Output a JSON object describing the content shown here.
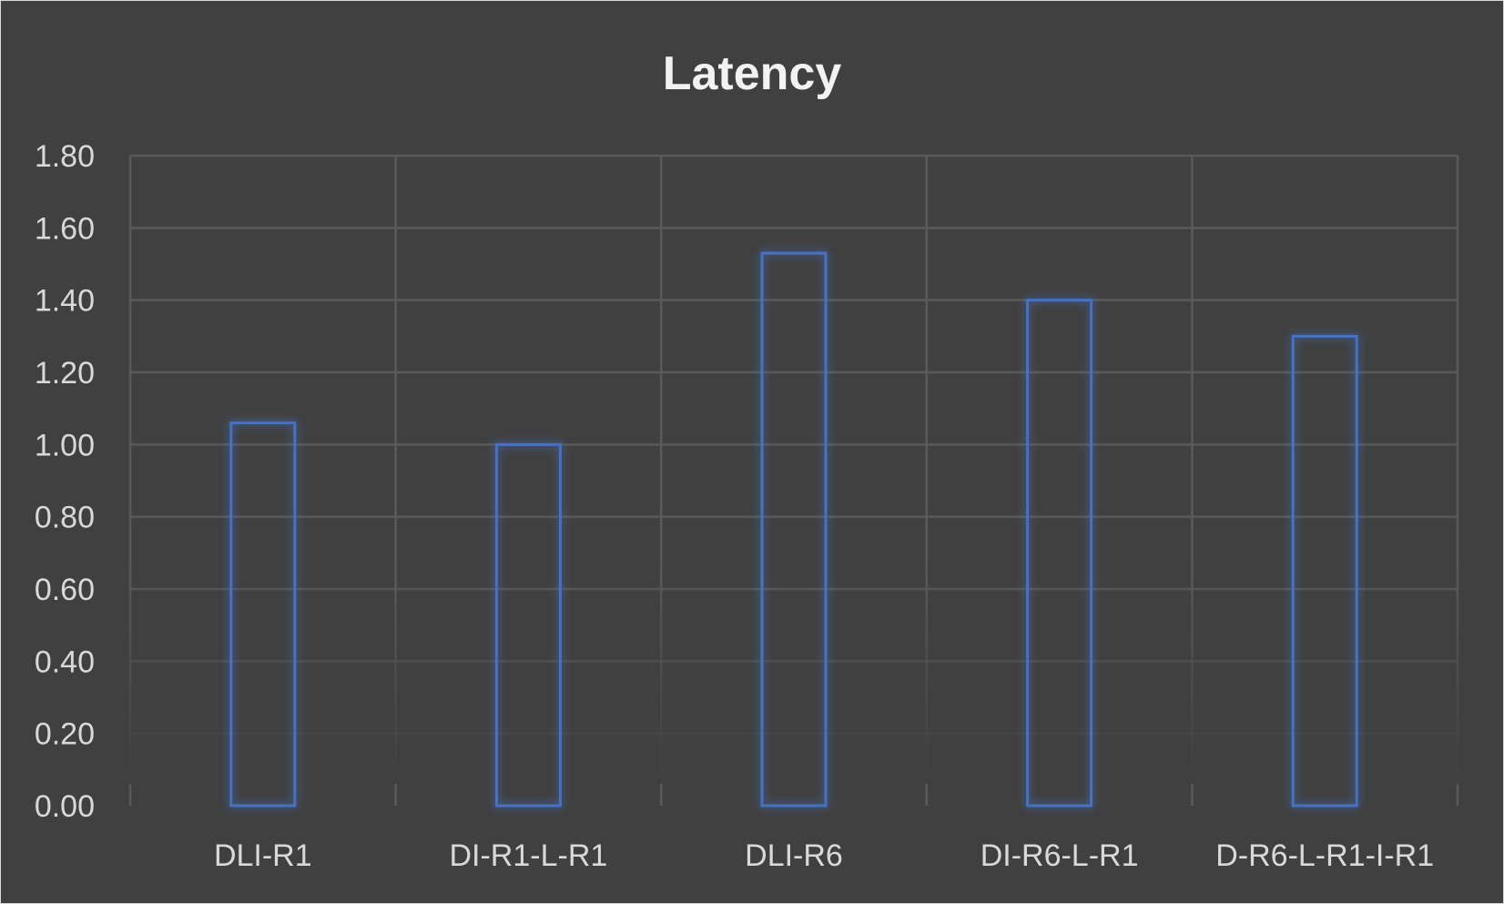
{
  "chart_data": {
    "type": "bar",
    "title": "Latency",
    "xlabel": "",
    "ylabel": "",
    "categories": [
      "DLI-R1",
      "DI-R1-L-R1",
      "DLI-R6",
      "DI-R6-L-R1",
      "D-R6-L-R1-I-R1"
    ],
    "values": [
      1.06,
      1.0,
      1.53,
      1.4,
      1.3
    ],
    "ylim": [
      0,
      1.8
    ],
    "yticks": [
      "0.00",
      "0.20",
      "0.40",
      "0.60",
      "0.80",
      "1.00",
      "1.20",
      "1.40",
      "1.60",
      "1.80"
    ],
    "grid": true,
    "bar_style": "outline with glow",
    "colors": {
      "background": "#404040",
      "bar_outline": "#4472C4",
      "bar_glow": "#3a6ff0",
      "gridline": "#5a5a5a",
      "text": "#d9d9d9",
      "title": "#f2f2f2"
    }
  }
}
